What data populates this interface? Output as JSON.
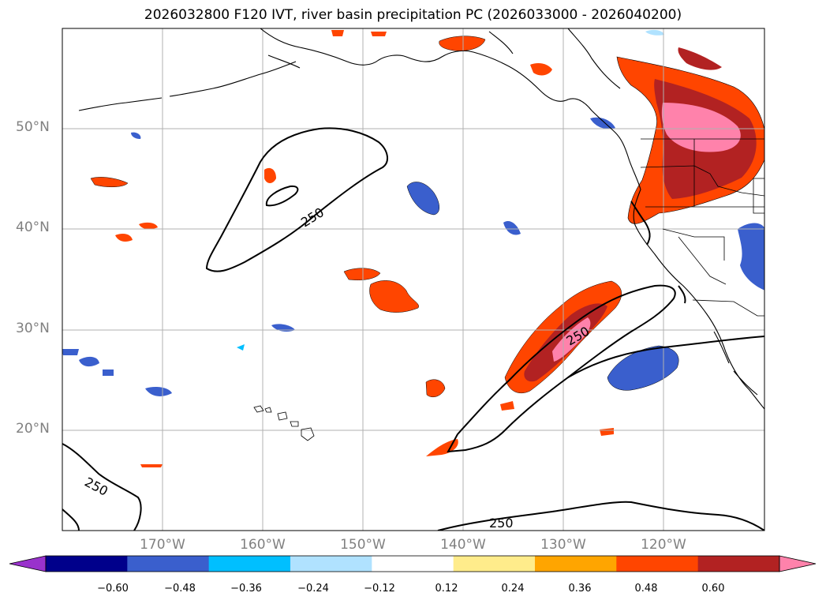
{
  "title": "2026032800 F120 IVT, river basin precipitation PC (2026033000 - 2026040200)",
  "lat_labels": [
    "50°N",
    "40°N",
    "30°N",
    "20°N"
  ],
  "lon_labels": [
    "170°W",
    "160°W",
    "150°W",
    "140°W",
    "130°W",
    "120°W"
  ],
  "contour_label": "250",
  "colorbar": {
    "ticks": [
      "−0.60",
      "−0.48",
      "−0.36",
      "−0.24",
      "−0.12",
      "0.12",
      "0.24",
      "0.36",
      "0.48",
      "0.60"
    ],
    "colors": [
      "#9932cc",
      "#00008b",
      "#3a5fcd",
      "#00bfff",
      "#b0e2ff",
      "#ffffff",
      "#ffec8b",
      "#ffa500",
      "#ff4500",
      "#b22222",
      "#ff82ab"
    ]
  },
  "colors": {
    "pos_low": "#ffec8b",
    "pos_mid": "#ffa500",
    "pos_high": "#ff4500",
    "pos_dark": "#b22222",
    "pos_max": "#ff82ab",
    "neg_low": "#b0e2ff",
    "neg_mid": "#00bfff",
    "neg_high": "#3a5fcd",
    "neg_max": "#00008b"
  }
}
